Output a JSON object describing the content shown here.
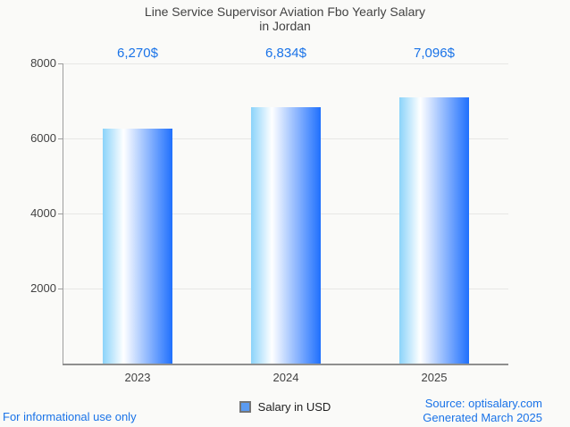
{
  "page": {
    "background": "#fafaf8",
    "accent_blue": "#1a73e8",
    "text_gray": "#424242"
  },
  "title": {
    "line1": "Line Service Supervisor Aviation Fbo Yearly Salary",
    "line2": "in Jordan"
  },
  "chart_data": {
    "type": "bar",
    "title": "Line Service Supervisor Aviation Fbo Yearly Salary in Jordan",
    "categories": [
      "2023",
      "2024",
      "2025"
    ],
    "series": [
      {
        "name": "Salary in USD",
        "values": [
          6270,
          6834,
          7096
        ]
      }
    ],
    "value_labels": [
      "6,270$",
      "6,834$",
      "7,096$"
    ],
    "xlabel": "",
    "ylabel": "",
    "ylim": [
      0,
      8000
    ],
    "yticks": [
      2000,
      4000,
      6000,
      8000
    ],
    "grid": true,
    "legend_position": "bottom",
    "bar_gradient": [
      "#8bd3fa",
      "#ffffff",
      "#1f70fd"
    ],
    "value_label_color": "#1a73e8"
  },
  "legend": {
    "swatch_color": "#5b9bf1",
    "label": "Salary in USD"
  },
  "footer": {
    "left": "For informational use only",
    "source": "Source: optisalary.com",
    "generated": "Generated March 2025"
  }
}
